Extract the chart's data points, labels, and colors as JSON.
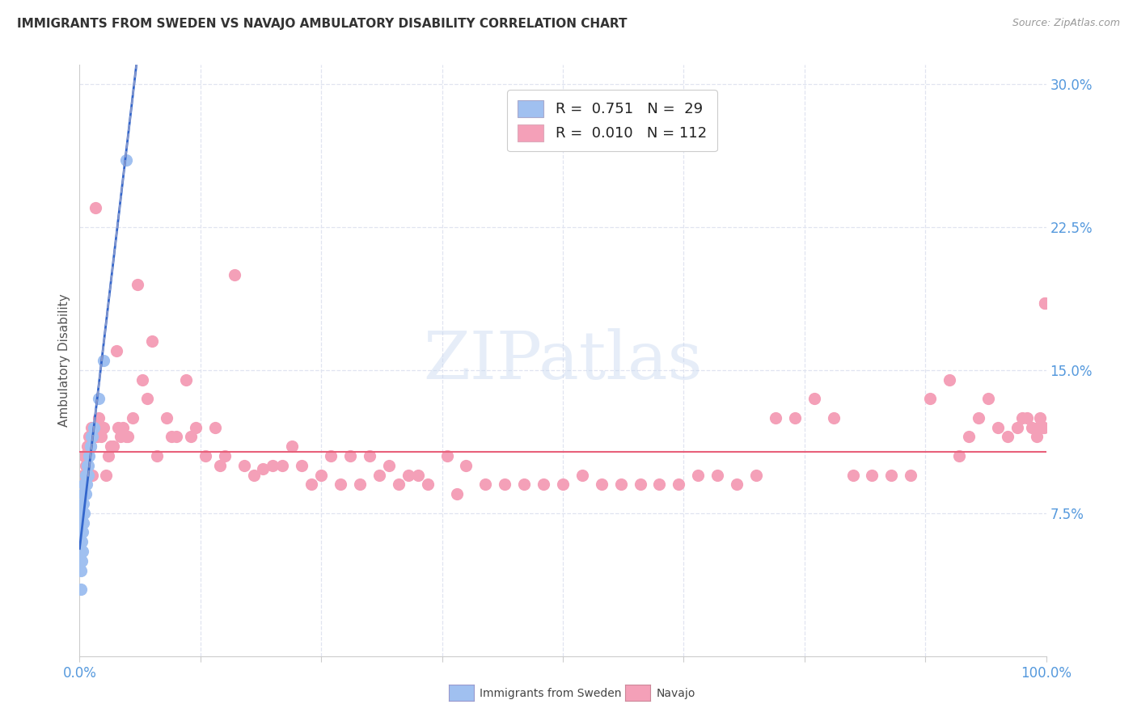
{
  "title": "IMMIGRANTS FROM SWEDEN VS NAVAJO AMBULATORY DISABILITY CORRELATION CHART",
  "source": "Source: ZipAtlas.com",
  "ylabel": "Ambulatory Disability",
  "xlim": [
    0,
    1.0
  ],
  "ylim": [
    0,
    0.31
  ],
  "yticks": [
    0.075,
    0.15,
    0.225,
    0.3
  ],
  "ytick_labels": [
    "7.5%",
    "15.0%",
    "22.5%",
    "30.0%"
  ],
  "xticks": [
    0.0,
    0.125,
    0.25,
    0.375,
    0.5,
    0.625,
    0.75,
    0.875,
    1.0
  ],
  "sweden_color": "#a0c0f0",
  "navajo_color": "#f4a0b8",
  "sweden_line_color": "#3366cc",
  "navajo_line_color": "#e8607a",
  "regression_dashed_color": "#8899cc",
  "background_color": "#ffffff",
  "grid_color": "#e0e4f0",
  "legend_label1": "R =  0.751   N =  29",
  "legend_label2": "R =  0.010   N = 112",
  "legend_R1": "0.751",
  "legend_N1": "29",
  "legend_R2": "0.010",
  "legend_N2": "112",
  "watermark_text": "ZIPatlas",
  "bottom_label1": "Immigrants from Sweden",
  "bottom_label2": "Navajo"
}
